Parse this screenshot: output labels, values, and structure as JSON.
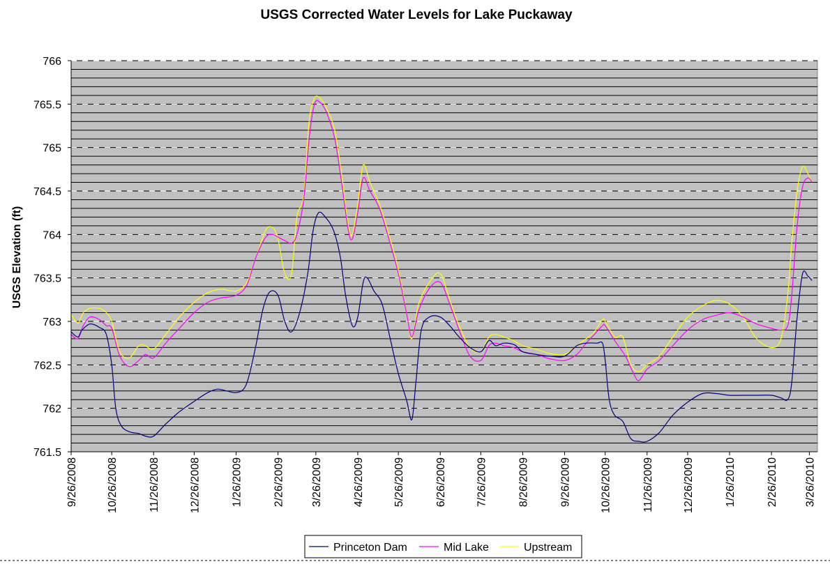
{
  "chart_data": {
    "type": "line",
    "title": "USGS Corrected Water Levels for Lake Puckaway",
    "xlabel": "",
    "ylabel": "USGS Elevation (ft)",
    "ylim": [
      761.5,
      766
    ],
    "yticks": [
      "761.5",
      "762",
      "762.5",
      "763",
      "763.5",
      "764",
      "764.5",
      "765",
      "765.5",
      "766"
    ],
    "xlim": [
      "2008-09-26",
      "2010-04-01"
    ],
    "xticks": [
      "9/26/2008",
      "10/26/2008",
      "11/26/2008",
      "12/26/2008",
      "1/26/2009",
      "2/26/2009",
      "3/26/2009",
      "4/26/2009",
      "5/26/2009",
      "6/26/2009",
      "7/26/2009",
      "8/26/2009",
      "9/26/2009",
      "10/26/2009",
      "11/26/2009",
      "12/26/2009",
      "1/26/2010",
      "2/26/2010",
      "3/26/2010"
    ],
    "grid": "horizontal",
    "plot_background": "#C0C0C0",
    "legend_position": "bottom",
    "series": [
      {
        "name": "Princeton Dam",
        "color": "#000080",
        "points": [
          [
            "2008-09-26",
            762.88
          ],
          [
            "2008-10-01",
            762.82
          ],
          [
            "2008-10-04",
            762.9
          ],
          [
            "2008-10-10",
            762.97
          ],
          [
            "2008-10-17",
            762.93
          ],
          [
            "2008-10-22",
            762.85
          ],
          [
            "2008-10-26",
            762.5
          ],
          [
            "2008-10-29",
            762.0
          ],
          [
            "2008-11-02",
            761.8
          ],
          [
            "2008-11-08",
            761.73
          ],
          [
            "2008-11-15",
            761.71
          ],
          [
            "2008-11-20",
            761.68
          ],
          [
            "2008-11-26",
            761.68
          ],
          [
            "2008-12-05",
            761.82
          ],
          [
            "2008-12-15",
            761.96
          ],
          [
            "2008-12-26",
            762.08
          ],
          [
            "2009-01-05",
            762.18
          ],
          [
            "2009-01-12",
            762.22
          ],
          [
            "2009-01-19",
            762.2
          ],
          [
            "2009-01-26",
            762.18
          ],
          [
            "2009-02-01",
            762.23
          ],
          [
            "2009-02-05",
            762.4
          ],
          [
            "2009-02-10",
            762.75
          ],
          [
            "2009-02-15",
            763.15
          ],
          [
            "2009-02-20",
            763.34
          ],
          [
            "2009-02-26",
            763.3
          ],
          [
            "2009-03-03",
            763.0
          ],
          [
            "2009-03-08",
            762.88
          ],
          [
            "2009-03-14",
            763.1
          ],
          [
            "2009-03-20",
            763.55
          ],
          [
            "2009-03-24",
            764.05
          ],
          [
            "2009-03-28",
            764.25
          ],
          [
            "2009-04-02",
            764.2
          ],
          [
            "2009-04-08",
            764.05
          ],
          [
            "2009-04-13",
            763.75
          ],
          [
            "2009-04-17",
            763.3
          ],
          [
            "2009-04-22",
            762.95
          ],
          [
            "2009-04-26",
            763.05
          ],
          [
            "2009-04-30",
            763.45
          ],
          [
            "2009-05-03",
            763.5
          ],
          [
            "2009-05-08",
            763.35
          ],
          [
            "2009-05-14",
            763.2
          ],
          [
            "2009-05-20",
            762.8
          ],
          [
            "2009-05-26",
            762.4
          ],
          [
            "2009-06-01",
            762.1
          ],
          [
            "2009-06-05",
            761.87
          ],
          [
            "2009-06-08",
            762.3
          ],
          [
            "2009-06-12",
            762.9
          ],
          [
            "2009-06-18",
            763.05
          ],
          [
            "2009-06-26",
            763.05
          ],
          [
            "2009-07-03",
            762.95
          ],
          [
            "2009-07-10",
            762.82
          ],
          [
            "2009-07-18",
            762.7
          ],
          [
            "2009-07-26",
            762.65
          ],
          [
            "2009-08-01",
            762.78
          ],
          [
            "2009-08-06",
            762.72
          ],
          [
            "2009-08-12",
            762.75
          ],
          [
            "2009-08-20",
            762.73
          ],
          [
            "2009-08-26",
            762.65
          ],
          [
            "2009-09-05",
            762.62
          ],
          [
            "2009-09-15",
            762.6
          ],
          [
            "2009-09-26",
            762.6
          ],
          [
            "2009-10-05",
            762.72
          ],
          [
            "2009-10-12",
            762.75
          ],
          [
            "2009-10-20",
            762.75
          ],
          [
            "2009-10-24",
            762.75
          ],
          [
            "2009-10-26",
            762.55
          ],
          [
            "2009-10-29",
            762.1
          ],
          [
            "2009-11-02",
            761.92
          ],
          [
            "2009-11-08",
            761.85
          ],
          [
            "2009-11-14",
            761.65
          ],
          [
            "2009-11-20",
            761.62
          ],
          [
            "2009-11-26",
            761.62
          ],
          [
            "2009-12-05",
            761.72
          ],
          [
            "2009-12-15",
            761.92
          ],
          [
            "2009-12-26",
            762.07
          ],
          [
            "2010-01-06",
            762.17
          ],
          [
            "2010-01-16",
            762.17
          ],
          [
            "2010-01-26",
            762.15
          ],
          [
            "2010-02-05",
            762.15
          ],
          [
            "2010-02-15",
            762.15
          ],
          [
            "2010-02-26",
            762.15
          ],
          [
            "2010-03-05",
            762.12
          ],
          [
            "2010-03-10",
            762.1
          ],
          [
            "2010-03-13",
            762.3
          ],
          [
            "2010-03-17",
            763.05
          ],
          [
            "2010-03-21",
            763.55
          ],
          [
            "2010-03-25",
            763.52
          ],
          [
            "2010-03-28",
            763.47
          ]
        ]
      },
      {
        "name": "Mid Lake",
        "color": "#FF00FF",
        "points": [
          [
            "2008-09-26",
            762.85
          ],
          [
            "2008-10-01",
            762.8
          ],
          [
            "2008-10-05",
            762.95
          ],
          [
            "2008-10-10",
            763.05
          ],
          [
            "2008-10-17",
            763.02
          ],
          [
            "2008-10-22",
            762.95
          ],
          [
            "2008-10-26",
            762.92
          ],
          [
            "2008-11-01",
            762.6
          ],
          [
            "2008-11-08",
            762.48
          ],
          [
            "2008-11-15",
            762.55
          ],
          [
            "2008-11-20",
            762.62
          ],
          [
            "2008-11-26",
            762.58
          ],
          [
            "2008-12-05",
            762.75
          ],
          [
            "2008-12-15",
            762.92
          ],
          [
            "2008-12-26",
            763.1
          ],
          [
            "2009-01-05",
            763.22
          ],
          [
            "2009-01-15",
            763.27
          ],
          [
            "2009-01-26",
            763.3
          ],
          [
            "2009-02-03",
            763.42
          ],
          [
            "2009-02-10",
            763.75
          ],
          [
            "2009-02-17",
            763.97
          ],
          [
            "2009-02-22",
            764.0
          ],
          [
            "2009-02-26",
            763.97
          ],
          [
            "2009-03-03",
            763.93
          ],
          [
            "2009-03-08",
            763.9
          ],
          [
            "2009-03-12",
            764.0
          ],
          [
            "2009-03-17",
            764.4
          ],
          [
            "2009-03-21",
            765.1
          ],
          [
            "2009-03-25",
            765.5
          ],
          [
            "2009-03-29",
            765.52
          ],
          [
            "2009-04-03",
            765.4
          ],
          [
            "2009-04-09",
            765.1
          ],
          [
            "2009-04-14",
            764.6
          ],
          [
            "2009-04-19",
            764.05
          ],
          [
            "2009-04-22",
            763.95
          ],
          [
            "2009-04-26",
            764.25
          ],
          [
            "2009-04-30",
            764.65
          ],
          [
            "2009-05-05",
            764.5
          ],
          [
            "2009-05-12",
            764.3
          ],
          [
            "2009-05-19",
            763.95
          ],
          [
            "2009-05-26",
            763.55
          ],
          [
            "2009-06-01",
            763.1
          ],
          [
            "2009-06-05",
            762.82
          ],
          [
            "2009-06-10",
            763.12
          ],
          [
            "2009-06-18",
            763.38
          ],
          [
            "2009-06-26",
            763.45
          ],
          [
            "2009-07-03",
            763.2
          ],
          [
            "2009-07-10",
            762.9
          ],
          [
            "2009-07-18",
            762.6
          ],
          [
            "2009-07-26",
            762.55
          ],
          [
            "2009-08-01",
            762.72
          ],
          [
            "2009-08-06",
            762.75
          ],
          [
            "2009-08-12",
            762.72
          ],
          [
            "2009-08-19",
            762.7
          ],
          [
            "2009-08-26",
            762.65
          ],
          [
            "2009-09-05",
            762.62
          ],
          [
            "2009-09-15",
            762.57
          ],
          [
            "2009-09-26",
            762.55
          ],
          [
            "2009-10-05",
            762.62
          ],
          [
            "2009-10-12",
            762.75
          ],
          [
            "2009-10-18",
            762.85
          ],
          [
            "2009-10-24",
            762.95
          ],
          [
            "2009-10-26",
            762.95
          ],
          [
            "2009-11-02",
            762.78
          ],
          [
            "2009-11-10",
            762.6
          ],
          [
            "2009-11-16",
            762.4
          ],
          [
            "2009-11-20",
            762.32
          ],
          [
            "2009-11-26",
            762.45
          ],
          [
            "2009-12-05",
            762.55
          ],
          [
            "2009-12-15",
            762.72
          ],
          [
            "2009-12-26",
            762.9
          ],
          [
            "2010-01-06",
            763.02
          ],
          [
            "2010-01-16",
            763.07
          ],
          [
            "2010-01-26",
            763.1
          ],
          [
            "2010-02-05",
            763.05
          ],
          [
            "2010-02-15",
            762.97
          ],
          [
            "2010-02-26",
            762.92
          ],
          [
            "2010-03-05",
            762.9
          ],
          [
            "2010-03-10",
            762.95
          ],
          [
            "2010-03-13",
            763.3
          ],
          [
            "2010-03-17",
            764.1
          ],
          [
            "2010-03-21",
            764.55
          ],
          [
            "2010-03-25",
            764.65
          ],
          [
            "2010-03-28",
            764.6
          ]
        ]
      },
      {
        "name": "Upstream",
        "color": "#FFFF00",
        "points": [
          [
            "2008-09-26",
            763.08
          ],
          [
            "2008-10-01",
            762.98
          ],
          [
            "2008-10-05",
            763.1
          ],
          [
            "2008-10-10",
            763.15
          ],
          [
            "2008-10-17",
            763.15
          ],
          [
            "2008-10-22",
            763.1
          ],
          [
            "2008-10-26",
            763.0
          ],
          [
            "2008-11-01",
            762.65
          ],
          [
            "2008-11-08",
            762.58
          ],
          [
            "2008-11-15",
            762.72
          ],
          [
            "2008-11-20",
            762.72
          ],
          [
            "2008-11-26",
            762.68
          ],
          [
            "2008-12-05",
            762.85
          ],
          [
            "2008-12-15",
            763.05
          ],
          [
            "2008-12-26",
            763.22
          ],
          [
            "2009-01-05",
            763.33
          ],
          [
            "2009-01-15",
            763.37
          ],
          [
            "2009-01-26",
            763.35
          ],
          [
            "2009-02-03",
            763.45
          ],
          [
            "2009-02-10",
            763.75
          ],
          [
            "2009-02-17",
            764.05
          ],
          [
            "2009-02-22",
            764.08
          ],
          [
            "2009-02-26",
            763.95
          ],
          [
            "2009-03-03",
            763.55
          ],
          [
            "2009-03-08",
            763.55
          ],
          [
            "2009-03-12",
            764.2
          ],
          [
            "2009-03-17",
            764.45
          ],
          [
            "2009-03-21",
            765.3
          ],
          [
            "2009-03-25",
            765.57
          ],
          [
            "2009-03-29",
            765.57
          ],
          [
            "2009-04-03",
            765.45
          ],
          [
            "2009-04-09",
            765.2
          ],
          [
            "2009-04-14",
            764.7
          ],
          [
            "2009-04-19",
            764.1
          ],
          [
            "2009-04-22",
            764.0
          ],
          [
            "2009-04-26",
            764.35
          ],
          [
            "2009-04-30",
            764.8
          ],
          [
            "2009-05-05",
            764.6
          ],
          [
            "2009-05-12",
            764.35
          ],
          [
            "2009-05-19",
            764.0
          ],
          [
            "2009-05-26",
            763.6
          ],
          [
            "2009-06-01",
            763.1
          ],
          [
            "2009-06-05",
            762.8
          ],
          [
            "2009-06-10",
            763.2
          ],
          [
            "2009-06-18",
            763.45
          ],
          [
            "2009-06-26",
            763.55
          ],
          [
            "2009-07-03",
            763.25
          ],
          [
            "2009-07-10",
            762.95
          ],
          [
            "2009-07-18",
            762.7
          ],
          [
            "2009-07-26",
            762.65
          ],
          [
            "2009-08-01",
            762.82
          ],
          [
            "2009-08-06",
            762.85
          ],
          [
            "2009-08-12",
            762.82
          ],
          [
            "2009-08-19",
            762.78
          ],
          [
            "2009-08-26",
            762.72
          ],
          [
            "2009-09-05",
            762.68
          ],
          [
            "2009-09-15",
            762.63
          ],
          [
            "2009-09-26",
            762.62
          ],
          [
            "2009-10-05",
            762.72
          ],
          [
            "2009-10-12",
            762.8
          ],
          [
            "2009-10-18",
            762.88
          ],
          [
            "2009-10-24",
            763.02
          ],
          [
            "2009-10-26",
            763.0
          ],
          [
            "2009-11-02",
            762.82
          ],
          [
            "2009-11-08",
            762.82
          ],
          [
            "2009-11-14",
            762.5
          ],
          [
            "2009-11-20",
            762.42
          ],
          [
            "2009-11-26",
            762.5
          ],
          [
            "2009-12-05",
            762.6
          ],
          [
            "2009-12-15",
            762.82
          ],
          [
            "2009-12-26",
            763.05
          ],
          [
            "2010-01-06",
            763.18
          ],
          [
            "2010-01-16",
            763.24
          ],
          [
            "2010-01-26",
            763.2
          ],
          [
            "2010-02-05",
            763.05
          ],
          [
            "2010-02-15",
            762.8
          ],
          [
            "2010-02-26",
            762.7
          ],
          [
            "2010-03-05",
            762.8
          ],
          [
            "2010-03-10",
            763.3
          ],
          [
            "2010-03-13",
            763.9
          ],
          [
            "2010-03-17",
            764.5
          ],
          [
            "2010-03-21",
            764.78
          ],
          [
            "2010-03-25",
            764.7
          ],
          [
            "2010-03-28",
            764.6
          ]
        ]
      }
    ]
  }
}
